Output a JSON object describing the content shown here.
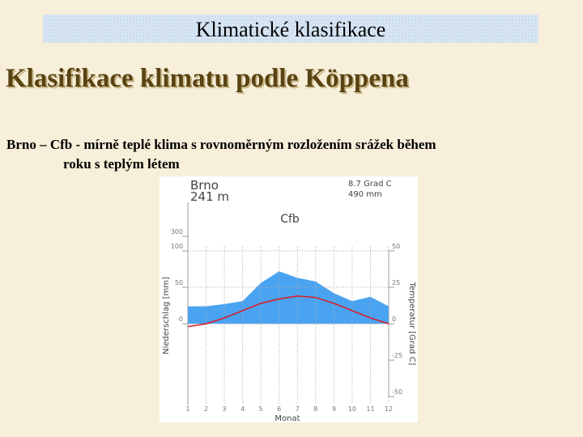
{
  "slide": {
    "header": "Klimatické klasifikace",
    "title": "Klasifikace klimatu podle Köppena",
    "body_line1": "Brno – Cfb - mírně teplé klima s rovnoměrným rozložením srážek během",
    "body_line2": "roku s teplým létem"
  },
  "chart_data": {
    "type": "climate-diagram",
    "station": "Brno",
    "elevation": "241 m",
    "annual_temperature": "8.7 Grad C",
    "annual_precipitation": "490 mm",
    "title": "Cfb",
    "xlabel": "Monat",
    "ylabel": "Niederschlag [mm]",
    "y2label": "Temperatur [Grad C]",
    "categories": [
      "1",
      "2",
      "3",
      "4",
      "5",
      "6",
      "7",
      "8",
      "9",
      "10",
      "11",
      "12"
    ],
    "series": [
      {
        "name": "Niederschlag",
        "color": "#4aa3f0",
        "values": [
          24,
          24,
          27,
          31,
          56,
          72,
          63,
          58,
          42,
          31,
          37,
          24
        ]
      },
      {
        "name": "Temperatur",
        "color": "#d8202a",
        "axis": "y2",
        "values": [
          -2,
          0,
          4,
          9,
          14,
          17,
          19,
          18,
          14,
          9,
          4,
          0
        ]
      }
    ],
    "ylim": [
      -111,
      767
    ],
    "yticks": [
      0,
      50,
      100,
      300
    ],
    "compressed_above": 100,
    "compression_factor": 10,
    "y2lim": [
      -55.5,
      83.3
    ],
    "y2ticks": [
      50,
      25,
      0,
      -25,
      -50
    ],
    "grid": true
  }
}
